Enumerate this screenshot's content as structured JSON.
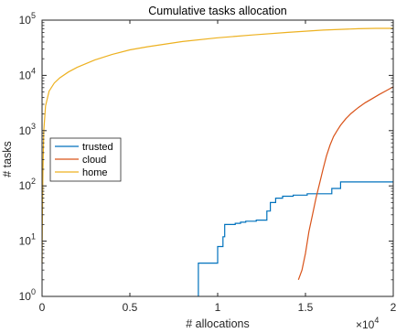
{
  "chart_data": {
    "type": "line",
    "title": "Cumulative tasks allocation",
    "xlabel": "# allocations",
    "ylabel": "# tasks",
    "x_multiplier_label": "×10",
    "x_multiplier_exponent": "4",
    "xlim": [
      0,
      20000
    ],
    "ylim": [
      1,
      100000
    ],
    "yscale": "log",
    "grid": false,
    "legend_position": "left-middle",
    "x_ticks": [
      0,
      5000,
      10000,
      15000,
      20000
    ],
    "x_tick_labels": [
      "0",
      "0.5",
      "1",
      "1.5",
      "2"
    ],
    "y_ticks": [
      1,
      10,
      100,
      1000,
      10000,
      100000
    ],
    "y_tick_labels": [
      {
        "base": "10",
        "exp": "0"
      },
      {
        "base": "10",
        "exp": "1"
      },
      {
        "base": "10",
        "exp": "2"
      },
      {
        "base": "10",
        "exp": "3"
      },
      {
        "base": "10",
        "exp": "4"
      },
      {
        "base": "10",
        "exp": "5"
      }
    ],
    "series": [
      {
        "name": "trusted",
        "color": "#0072BD",
        "step": true,
        "x": [
          8900,
          8900,
          10000,
          10000,
          10300,
          10300,
          10400,
          10400,
          11000,
          11000,
          11300,
          11300,
          11600,
          11600,
          12200,
          12200,
          12800,
          12800,
          13000,
          13000,
          13300,
          13300,
          13700,
          13700,
          14300,
          14300,
          15100,
          15100,
          16500,
          16500,
          17000,
          17000,
          20000
        ],
        "y": [
          1,
          4,
          4,
          8,
          8,
          12,
          12,
          20,
          20,
          21,
          21,
          22,
          22,
          23,
          23,
          24,
          24,
          35,
          35,
          50,
          50,
          60,
          60,
          65,
          65,
          68,
          68,
          72,
          72,
          90,
          90,
          118,
          118
        ]
      },
      {
        "name": "cloud",
        "color": "#D95319",
        "step": false,
        "x": [
          14600,
          14800,
          15000,
          15200,
          15400,
          15600,
          15800,
          16000,
          16200,
          16400,
          16600,
          16800,
          17000,
          17300,
          17600,
          18000,
          18400,
          18800,
          19200,
          19600,
          20000
        ],
        "y": [
          2,
          3,
          6,
          15,
          30,
          60,
          110,
          200,
          350,
          550,
          780,
          1000,
          1250,
          1650,
          2050,
          2600,
          3200,
          3800,
          4500,
          5300,
          6200
        ]
      },
      {
        "name": "home",
        "color": "#EDB120",
        "step": false,
        "x": [
          0,
          20,
          50,
          100,
          200,
          400,
          700,
          1000,
          1500,
          2000,
          3000,
          4000,
          5000,
          6000,
          8000,
          10000,
          12000,
          14000,
          16000,
          18000,
          19000,
          20000
        ],
        "y": [
          4,
          30,
          200,
          1000,
          2800,
          5200,
          7300,
          9000,
          11500,
          14000,
          19000,
          24000,
          29000,
          33000,
          41000,
          48000,
          54000,
          60000,
          66000,
          70000,
          71000,
          71000
        ]
      }
    ]
  }
}
